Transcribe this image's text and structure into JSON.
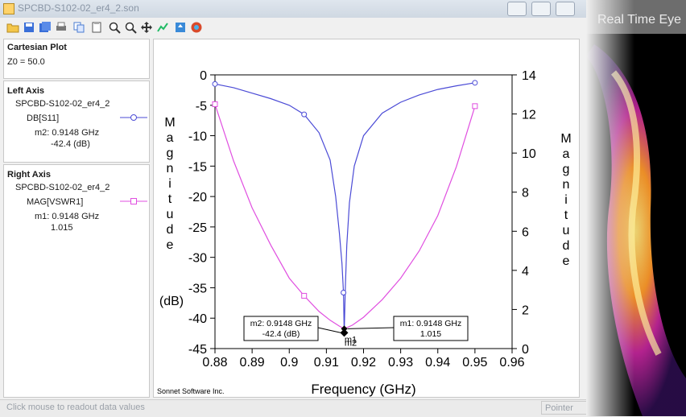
{
  "window": {
    "title": "SPCBD-S102-02_er4_2.son"
  },
  "toolbar": {
    "icons": [
      "open-icon",
      "save-icon",
      "print-icon",
      "copy-icon",
      "paste-icon",
      "zoom-in-icon",
      "zoom-out-icon",
      "pan-icon",
      "autoscale-icon",
      "refresh-icon",
      "help-icon"
    ]
  },
  "sidebar": {
    "header": {
      "title": "Cartesian Plot",
      "z0": "Z0 = 50.0"
    },
    "left_axis": {
      "title": "Left Axis",
      "file": "SPCBD-S102-02_er4_2",
      "trace": "DB[S11]",
      "marker_line1": "m2:  0.9148 GHz",
      "marker_line2": "-42.4  (dB)",
      "color": "#4b4bd6"
    },
    "right_axis": {
      "title": "Right Axis",
      "file": "SPCBD-S102-02_er4_2",
      "trace": "MAG[VSWR1]",
      "marker_line1": "m1:  0.9148 GHz",
      "marker_line2": "1.015",
      "color": "#e04fe0"
    }
  },
  "status": {
    "left": "Click mouse to readout data values",
    "right": "Pointer"
  },
  "photo_caption": "Real Time Eye",
  "chart_data": {
    "type": "line",
    "xlabel": "Frequency (GHz)",
    "ylabel_left": [
      "M",
      "a",
      "g",
      "n",
      "i",
      "t",
      "u",
      "d",
      "e",
      "(dB)"
    ],
    "ylabel_right": [
      "M",
      "a",
      "g",
      "n",
      "i",
      "t",
      "u",
      "d",
      "e"
    ],
    "xlim": [
      0.88,
      0.96
    ],
    "ylim_left": [
      -45,
      0
    ],
    "ylim_right": [
      0,
      14
    ],
    "x_ticks": [
      "0.88",
      "0.89",
      "0.9",
      "0.91",
      "0.92",
      "0.93",
      "0.94",
      "0.95",
      "0.96"
    ],
    "y_ticks_left": [
      "0",
      "-5",
      "-10",
      "-15",
      "-20",
      "-25",
      "-30",
      "-35",
      "-40",
      "-45"
    ],
    "y_ticks_right": [
      "14",
      "12",
      "10",
      "8",
      "6",
      "4",
      "2",
      "0"
    ],
    "credit": "Sonnet Software Inc.",
    "series": [
      {
        "name": "DB[S11]",
        "axis": "left",
        "color": "#4b4bd6",
        "points": [
          [
            0.88,
            -1.5
          ],
          [
            0.885,
            -2.1
          ],
          [
            0.89,
            -3.0
          ],
          [
            0.895,
            -3.9
          ],
          [
            0.9,
            -5.0
          ],
          [
            0.904,
            -6.5
          ],
          [
            0.908,
            -9.5
          ],
          [
            0.911,
            -14
          ],
          [
            0.9125,
            -20
          ],
          [
            0.9135,
            -26
          ],
          [
            0.9142,
            -31
          ],
          [
            0.9146,
            -35.8
          ],
          [
            0.9148,
            -42.4
          ],
          [
            0.9151,
            -35
          ],
          [
            0.9155,
            -28
          ],
          [
            0.9162,
            -21
          ],
          [
            0.9175,
            -15
          ],
          [
            0.92,
            -10
          ],
          [
            0.925,
            -6.3
          ],
          [
            0.93,
            -4.5
          ],
          [
            0.935,
            -3.3
          ],
          [
            0.94,
            -2.4
          ],
          [
            0.945,
            -1.8
          ],
          [
            0.95,
            -1.3
          ]
        ],
        "markers": [
          [
            0.88,
            -1.5
          ],
          [
            0.904,
            -6.5
          ],
          [
            0.9146,
            -35.8
          ],
          [
            0.95,
            -1.3
          ]
        ]
      },
      {
        "name": "MAG[VSWR1]",
        "axis": "right",
        "color": "#e04fe0",
        "points": [
          [
            0.88,
            12.5
          ],
          [
            0.885,
            9.6
          ],
          [
            0.89,
            7.2
          ],
          [
            0.895,
            5.3
          ],
          [
            0.9,
            3.6
          ],
          [
            0.904,
            2.7
          ],
          [
            0.908,
            1.9
          ],
          [
            0.911,
            1.45
          ],
          [
            0.9135,
            1.15
          ],
          [
            0.9148,
            1.015
          ],
          [
            0.917,
            1.2
          ],
          [
            0.92,
            1.6
          ],
          [
            0.925,
            2.5
          ],
          [
            0.93,
            3.6
          ],
          [
            0.935,
            5.0
          ],
          [
            0.94,
            6.8
          ],
          [
            0.945,
            9.3
          ],
          [
            0.95,
            12.4
          ]
        ],
        "markers": [
          [
            0.88,
            12.5
          ],
          [
            0.904,
            2.7
          ],
          [
            0.95,
            12.4
          ]
        ]
      }
    ],
    "annotations": [
      {
        "id": "m2",
        "line1": "m2: 0.9148 GHz",
        "line2": "-42.4  (dB)",
        "x": 0.9148,
        "y": -42.4,
        "axis": "left"
      },
      {
        "id": "m1",
        "line1": "m1: 0.9148 GHz",
        "line2": "1.015",
        "x": 0.9148,
        "y": 1.015,
        "axis": "right"
      }
    ],
    "marker_tags": [
      "m1",
      "m2"
    ]
  }
}
